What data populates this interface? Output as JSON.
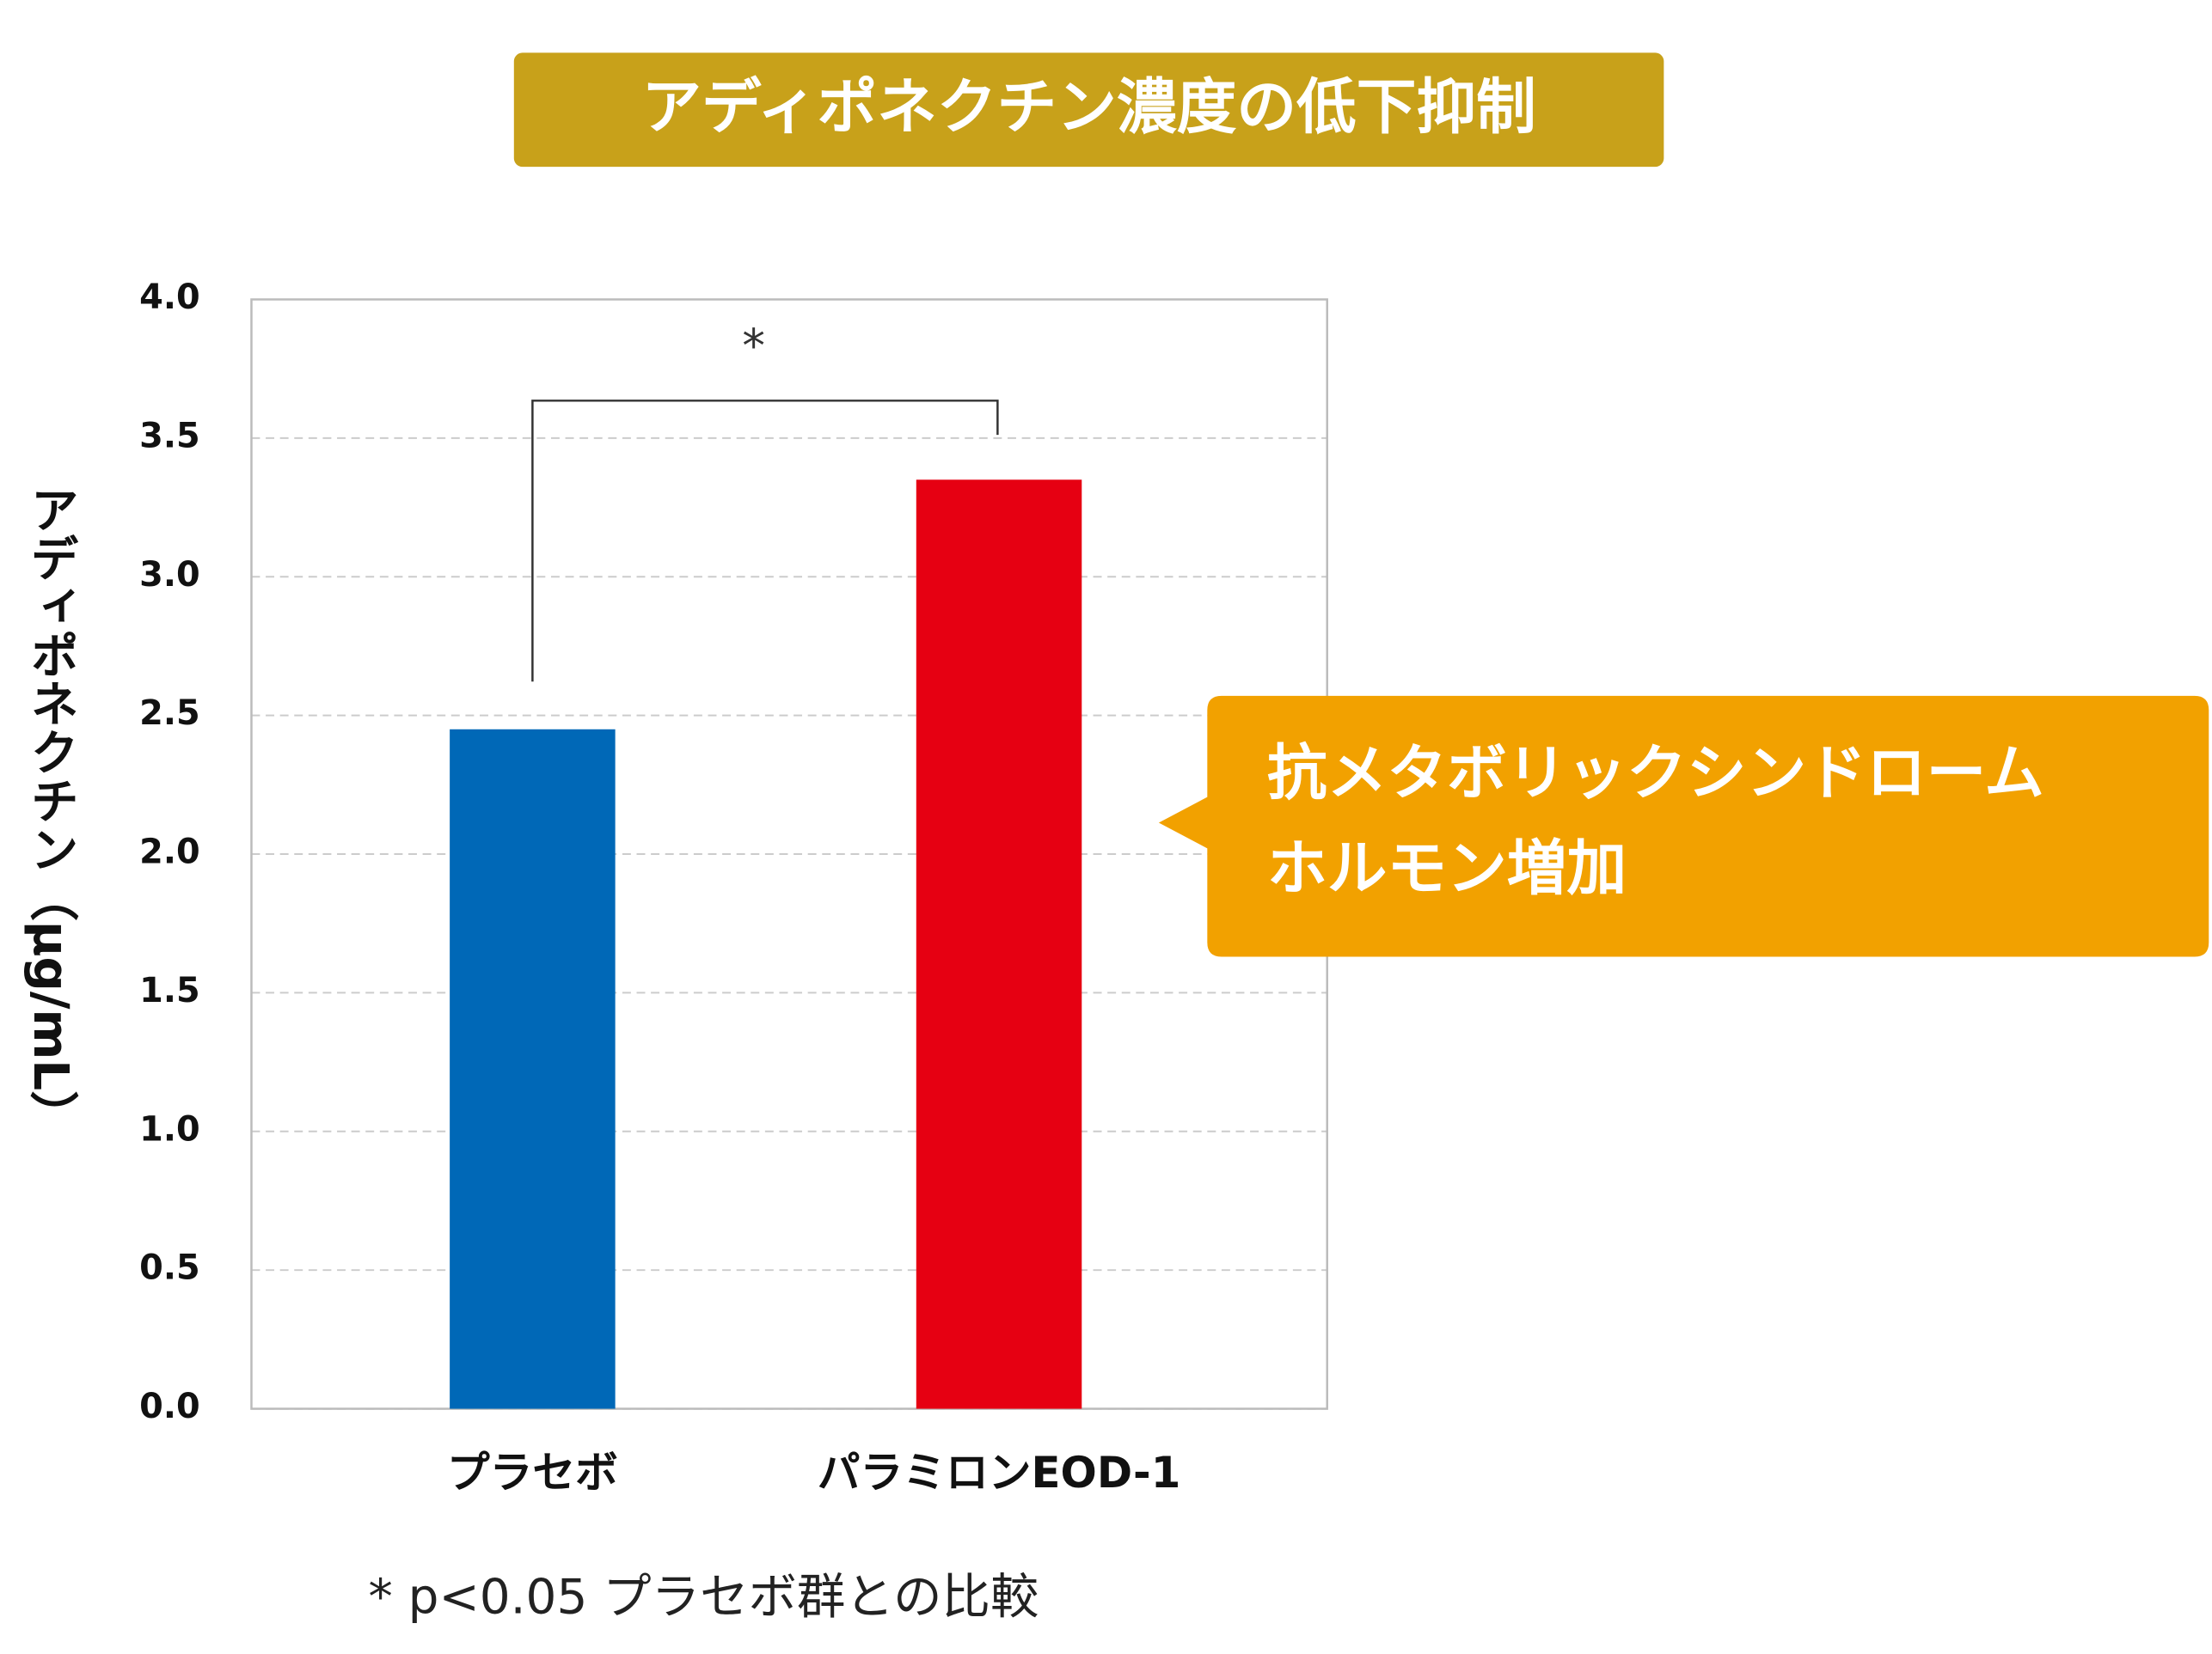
{
  "chart_data": {
    "type": "bar",
    "title": "アディポネクチン濃度の低下抑制",
    "y_label": "アディポネクチン（μg/mL）",
    "categories": [
      "プラセボ",
      "パラミロンEOD-1"
    ],
    "values": [
      2.45,
      3.35
    ],
    "colors": [
      "#0068b7",
      "#e60012"
    ],
    "ylim": [
      0,
      4
    ],
    "yticks": [
      {
        "value": 0,
        "label": "0.0"
      },
      0.5,
      {
        "value": 1,
        "label": "1.0"
      },
      1.5,
      {
        "value": 2,
        "label": "2.0"
      },
      2.5,
      {
        "value": 3,
        "label": "3.0"
      },
      3.5,
      {
        "value": 4,
        "label": "4.0"
      }
    ],
    "grid": true,
    "significance": "*",
    "callout": [
      "抗メタボリックシンドローム",
      "ホルモン増加"
    ],
    "footnote": "* p<0.05 プラセボ群との比較"
  }
}
